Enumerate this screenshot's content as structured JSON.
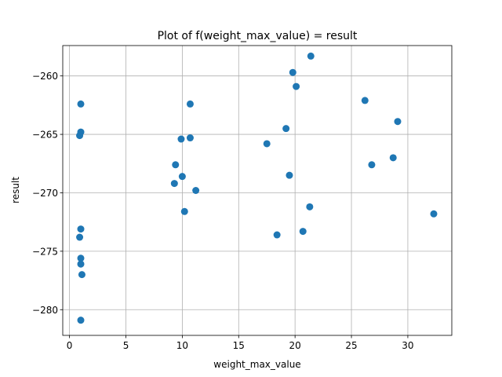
{
  "chart_data": {
    "type": "scatter",
    "title": "Plot of f(weight_max_value) = result",
    "xlabel": "weight_max_value",
    "ylabel": "result",
    "xlim": [
      -0.6,
      33.9
    ],
    "ylim": [
      -282.2,
      -257.4
    ],
    "xticks": [
      0,
      5,
      10,
      15,
      20,
      25,
      30
    ],
    "yticks": [
      -280,
      -275,
      -270,
      -265,
      -260
    ],
    "grid": true,
    "marker_color": "#1f77b4",
    "points": [
      {
        "x": 1.0,
        "y": -262.4
      },
      {
        "x": 1.0,
        "y": -264.8
      },
      {
        "x": 0.9,
        "y": -265.1
      },
      {
        "x": 1.0,
        "y": -273.1
      },
      {
        "x": 0.9,
        "y": -273.8
      },
      {
        "x": 1.0,
        "y": -275.6
      },
      {
        "x": 1.0,
        "y": -276.1
      },
      {
        "x": 1.1,
        "y": -277.0
      },
      {
        "x": 1.0,
        "y": -280.9
      },
      {
        "x": 9.4,
        "y": -267.6
      },
      {
        "x": 9.3,
        "y": -269.2
      },
      {
        "x": 9.9,
        "y": -265.4
      },
      {
        "x": 10.0,
        "y": -268.6
      },
      {
        "x": 10.2,
        "y": -271.6
      },
      {
        "x": 10.7,
        "y": -262.4
      },
      {
        "x": 10.7,
        "y": -265.3
      },
      {
        "x": 11.2,
        "y": -269.8
      },
      {
        "x": 17.5,
        "y": -265.8
      },
      {
        "x": 18.4,
        "y": -273.6
      },
      {
        "x": 19.2,
        "y": -264.5
      },
      {
        "x": 19.5,
        "y": -268.5
      },
      {
        "x": 19.8,
        "y": -259.7
      },
      {
        "x": 20.1,
        "y": -260.9
      },
      {
        "x": 20.7,
        "y": -273.3
      },
      {
        "x": 21.3,
        "y": -271.2
      },
      {
        "x": 21.4,
        "y": -258.3
      },
      {
        "x": 26.2,
        "y": -262.1
      },
      {
        "x": 26.8,
        "y": -267.6
      },
      {
        "x": 28.7,
        "y": -267.0
      },
      {
        "x": 29.1,
        "y": -263.9
      },
      {
        "x": 32.3,
        "y": -271.8
      }
    ]
  }
}
